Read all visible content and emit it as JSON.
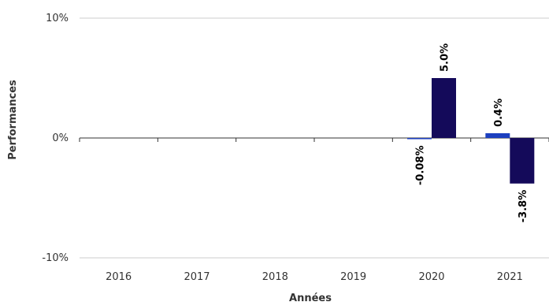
{
  "chart_data": {
    "type": "bar",
    "categories": [
      "2016",
      "2017",
      "2018",
      "2019",
      "2020",
      "2021"
    ],
    "series": [
      {
        "color": "#1c3fbf",
        "values": [
          null,
          null,
          null,
          null,
          -0.08,
          0.4
        ],
        "labels": [
          null,
          null,
          null,
          null,
          "-0.08%",
          "0.4%"
        ]
      },
      {
        "color": "#140a5a",
        "values": [
          null,
          null,
          null,
          null,
          5.0,
          -3.8
        ],
        "labels": [
          null,
          null,
          null,
          null,
          "5.0%",
          "-3.8%"
        ]
      }
    ],
    "xlabel": "Années",
    "ylabel": "Performances",
    "ylim": [
      -10,
      10
    ],
    "yticks": [
      10,
      0,
      -10
    ],
    "ytick_labels": [
      "10%",
      "0%",
      "-10%"
    ],
    "grid": true,
    "legend": false
  }
}
